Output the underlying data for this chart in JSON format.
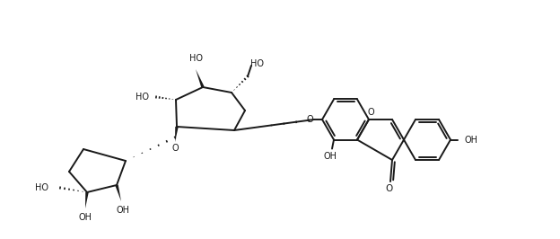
{
  "bg": "#ffffff",
  "lc": "#1a1a1a",
  "lw": 1.4,
  "fs": 7.0,
  "fig_w": 6.24,
  "fig_h": 2.66,
  "dpi": 100
}
